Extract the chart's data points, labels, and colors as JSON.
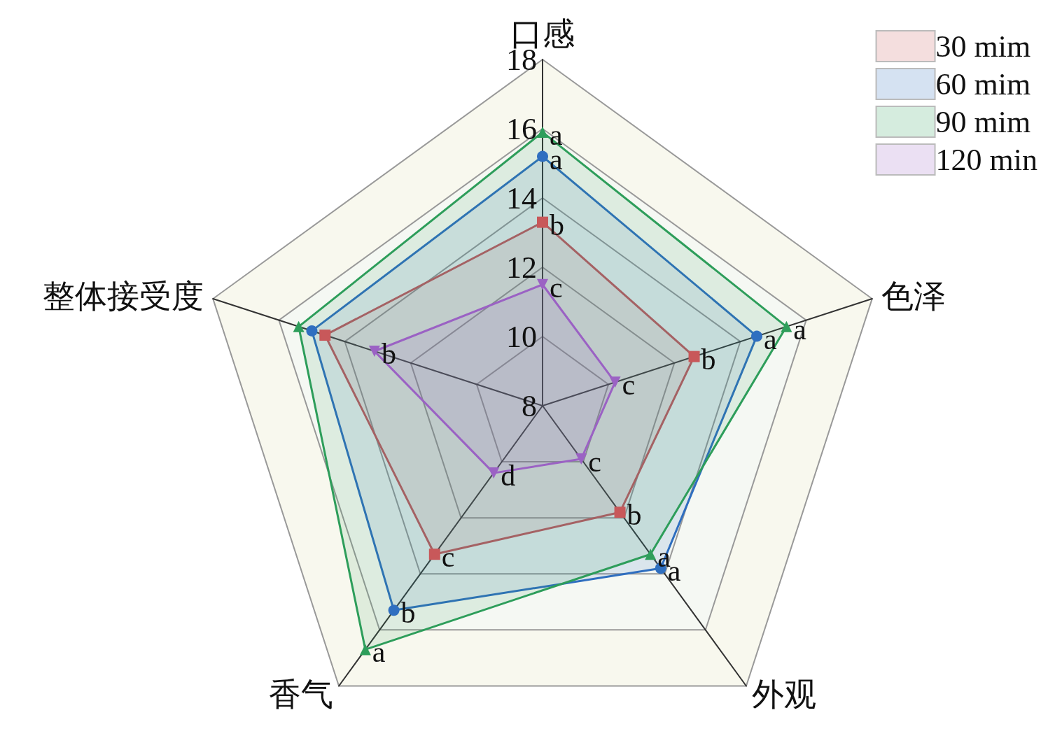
{
  "chart_data": {
    "type": "radar",
    "categories": [
      "口感",
      "色泽",
      "外观",
      "香气",
      "整体接受度"
    ],
    "ylim": [
      8,
      18
    ],
    "yticks": [
      8,
      10,
      12,
      14,
      16,
      18
    ],
    "legend": "top right",
    "grid": true,
    "series": [
      {
        "name": "30 mim",
        "color": "#c8585a",
        "marker": "square",
        "values": [
          13.3,
          12.6,
          11.8,
          13.3,
          14.6
        ],
        "value_labels": [
          "b",
          "b",
          "b",
          "c",
          null
        ]
      },
      {
        "name": "60 mim",
        "color": "#2f6fc0",
        "marker": "circle",
        "values": [
          15.2,
          14.5,
          13.8,
          15.3,
          15.0
        ],
        "value_labels": [
          "a",
          "a",
          "a",
          "b",
          null
        ]
      },
      {
        "name": "90 mim",
        "color": "#2e9e5b",
        "marker": "triangle",
        "values": [
          15.9,
          15.4,
          13.3,
          16.7,
          15.4
        ],
        "value_labels": [
          "a",
          "a",
          "a",
          "a",
          null
        ]
      },
      {
        "name": "120 min",
        "color": "#9b62c4",
        "marker": "triangle-down",
        "values": [
          11.5,
          10.2,
          9.9,
          10.4,
          13.1
        ],
        "value_labels": [
          "c",
          "c",
          "c",
          "d",
          "b"
        ]
      }
    ]
  }
}
